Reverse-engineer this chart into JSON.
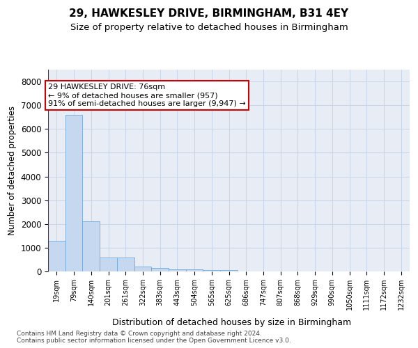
{
  "title1": "29, HAWKESLEY DRIVE, BIRMINGHAM, B31 4EY",
  "title2": "Size of property relative to detached houses in Birmingham",
  "xlabel": "Distribution of detached houses by size in Birmingham",
  "ylabel": "Number of detached properties",
  "footer1": "Contains HM Land Registry data © Crown copyright and database right 2024.",
  "footer2": "Contains public sector information licensed under the Open Government Licence v3.0.",
  "bin_labels": [
    "19sqm",
    "79sqm",
    "140sqm",
    "201sqm",
    "261sqm",
    "322sqm",
    "383sqm",
    "443sqm",
    "504sqm",
    "565sqm",
    "625sqm",
    "686sqm",
    "747sqm",
    "807sqm",
    "868sqm",
    "929sqm",
    "990sqm",
    "1050sqm",
    "1111sqm",
    "1172sqm",
    "1232sqm"
  ],
  "bar_heights": [
    1300,
    6600,
    2100,
    600,
    580,
    200,
    140,
    100,
    90,
    50,
    45,
    0,
    0,
    0,
    0,
    0,
    0,
    0,
    0,
    0,
    0
  ],
  "bar_color": "#c5d8ef",
  "bar_edge_color": "#6fa8dc",
  "property_line_x": -0.5,
  "property_line_color": "#cc0000",
  "annotation_line1": "29 HAWKESLEY DRIVE: 76sqm",
  "annotation_line2": "← 9% of detached houses are smaller (957)",
  "annotation_line3": "91% of semi-detached houses are larger (9,947) →",
  "annotation_box_facecolor": "#ffffff",
  "annotation_box_edgecolor": "#cc0000",
  "ylim": [
    0,
    8500
  ],
  "yticks": [
    0,
    1000,
    2000,
    3000,
    4000,
    5000,
    6000,
    7000,
    8000
  ],
  "grid_color": "#c8d5e8",
  "bg_color": "#e8edf5",
  "title1_fontsize": 11,
  "title2_fontsize": 9.5,
  "xlabel_fontsize": 9,
  "ylabel_fontsize": 8.5,
  "tick_label_fontsize": 7,
  "annotation_fontsize": 8,
  "footer_fontsize": 6.5,
  "ytick_fontsize": 8.5
}
